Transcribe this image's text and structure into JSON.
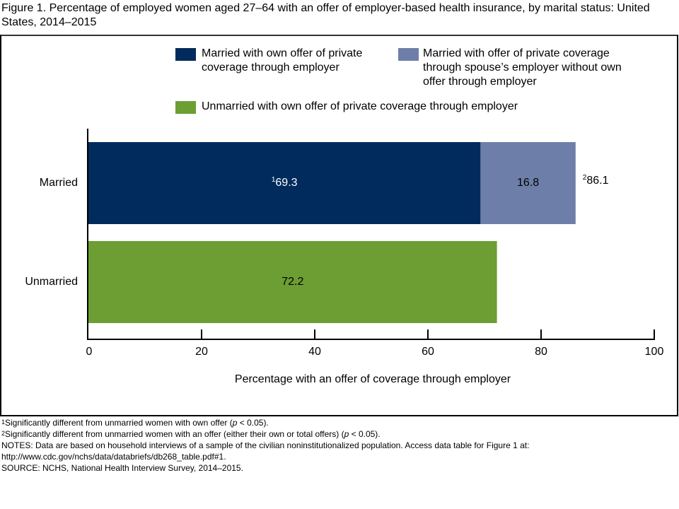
{
  "title": "Figure 1. Percentage of employed women aged 27–64 with an offer of employer-based health insurance, by marital status: United States, 2014–2015",
  "legend": [
    {
      "label_lines": [
        "Married with own offer of private",
        "coverage through employer"
      ],
      "color": "#002B5C"
    },
    {
      "label_lines": [
        "Married with offer of private coverage",
        "through spouse’s employer without own",
        "offer through employer"
      ],
      "color": "#6D7FA8"
    },
    {
      "label_lines": [
        "Unmarried with own offer of private coverage through employer"
      ],
      "color": "#6C9E33"
    }
  ],
  "chart_data": {
    "type": "bar",
    "orientation": "horizontal",
    "stacked": true,
    "categories": [
      "Married",
      "Unmarried"
    ],
    "series": [
      {
        "name": "Married with own offer of private coverage through employer",
        "color": "#002B5C",
        "values": [
          69.3,
          null
        ],
        "labels": [
          "69.3",
          null
        ],
        "label_superscripts": [
          "1",
          null
        ],
        "label_color": "#ffffff"
      },
      {
        "name": "Married with offer of private coverage through spouse’s employer without own offer through employer",
        "color": "#6D7FA8",
        "values": [
          16.8,
          null
        ],
        "labels": [
          "16.8",
          null
        ],
        "label_superscripts": [
          "",
          null
        ],
        "label_color": "#000000"
      },
      {
        "name": "Unmarried with own offer of private coverage through employer",
        "color": "#6C9E33",
        "values": [
          null,
          72.2
        ],
        "labels": [
          null,
          "72.2"
        ],
        "label_superscripts": [
          null,
          ""
        ],
        "label_color": "#000000"
      }
    ],
    "totals": [
      {
        "category": "Married",
        "value": 86.1,
        "label": "86.1",
        "superscript": "2"
      }
    ],
    "xlabel": "Percentage with an offer of coverage through employer",
    "ylabel": "",
    "xlim": [
      0,
      100
    ],
    "xticks": [
      0,
      20,
      40,
      60,
      80,
      100
    ],
    "xtick_labels": [
      "0",
      "20",
      "40",
      "60",
      "80",
      "100"
    ],
    "grid": false,
    "legend_position": "top"
  },
  "footnotes": {
    "note1_sup": "1",
    "note1_pre": "Significantly different from unmarried women with own offer (",
    "note1_p": "p",
    "note1_post": " < 0.05).",
    "note2_sup": "2",
    "note2_pre": "Significantly different from unmarried women with an offer (either their own or total offers) (",
    "note2_p": "p",
    "note2_post": " < 0.05).",
    "notes_line1": "NOTES: Data are based on household interviews of a sample of the civilian noninstitutionalized population. Access data table for Figure 1 at:",
    "notes_line2": "http://www.cdc.gov/nchs/data/databriefs/db268_table.pdf#1.",
    "source": "SOURCE: NCHS, National Health Interview Survey, 2014–2015."
  }
}
